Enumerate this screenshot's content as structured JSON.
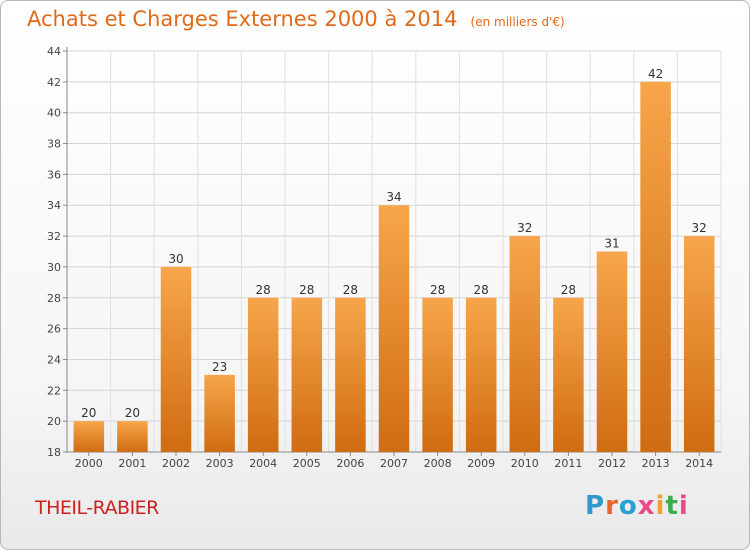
{
  "title": "Achats et Charges Externes 2000 à 2014",
  "subtitle": "(en milliers d'€)",
  "footer_label": "THEIL-RABIER",
  "logo": {
    "letters": [
      "P",
      "r",
      "o",
      "x",
      "i",
      "t",
      "i"
    ],
    "colors": [
      "#3399cc",
      "#e8652b",
      "#2a9fd6",
      "#e84a8a",
      "#f0a030",
      "#3fae49",
      "#e84a8a"
    ]
  },
  "colors": {
    "bar": "#f0922e",
    "bar_dark": "#d06c12",
    "title": "#e06a1a",
    "footer": "#cc2222"
  },
  "chart_data": {
    "type": "bar",
    "categories": [
      "2000",
      "2001",
      "2002",
      "2003",
      "2004",
      "2005",
      "2006",
      "2007",
      "2008",
      "2009",
      "2010",
      "2011",
      "2012",
      "2013",
      "2014"
    ],
    "values": [
      20,
      20,
      30,
      23,
      28,
      28,
      28,
      34,
      28,
      28,
      32,
      28,
      31,
      42,
      32
    ],
    "ylim": [
      18,
      44
    ],
    "yticks": [
      18,
      20,
      22,
      24,
      26,
      28,
      30,
      32,
      34,
      36,
      38,
      40,
      42,
      44
    ],
    "grid": true
  }
}
